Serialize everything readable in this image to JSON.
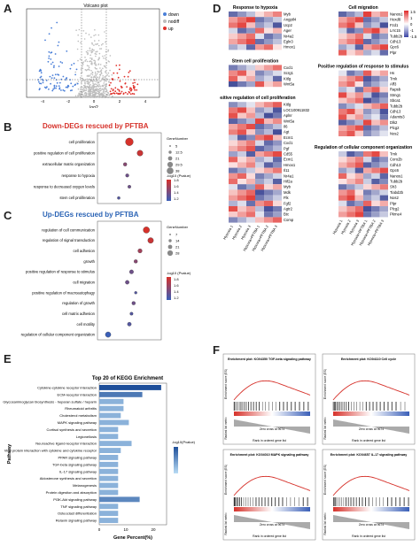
{
  "panels": {
    "a": "A",
    "b": "B",
    "c": "C",
    "d": "D",
    "e": "E",
    "f": "F"
  },
  "volcano": {
    "title": "Volcano plot",
    "xlabel": "log2",
    "xticks": [
      "-4",
      "-2",
      "0",
      "2",
      "4"
    ],
    "legend": [
      "down",
      "nodiff",
      "up"
    ],
    "colors": {
      "down": "#4a7fd8",
      "nodiff": "#bdbdbd",
      "up": "#e0312b"
    }
  },
  "panel_b": {
    "title": "Down-DEGs rescued by PFTBA",
    "terms": [
      "cell proliferation",
      "positive regulation of cell proliferation",
      "extracellular matrix organization",
      "response to hypoxia",
      "response to decreased oxygen levels",
      "stem cell proliferation"
    ],
    "legend_title_size": "GeneNumber",
    "legend_sizes": [
      "5",
      "12.5",
      "21",
      "29.5",
      "38"
    ],
    "legend_title_color": "-log10 (Pvalue)",
    "legend_colors": [
      "1.2",
      "1.4",
      "1.6",
      "1.8"
    ],
    "title_color": "#d6312a"
  },
  "panel_c": {
    "title": "Up-DEGs rescued by PFTBA",
    "terms": [
      "regulation of cell communication",
      "regulation of signal transduction",
      "cell adhesion",
      "growth",
      "positive regulation of response to stimulus",
      "cell migration",
      "positive regulation of macroautophagy",
      "regulation of growth",
      "cell matrix adhesion",
      "cell motility",
      "regulation of cellular component organization"
    ],
    "legend_title_size": "GeneNumber",
    "legend_sizes": [
      "7",
      "14",
      "21",
      "28"
    ],
    "legend_title_color": "-log10 (Pvalue)",
    "legend_colors": [
      "1.2",
      "1.4",
      "1.6",
      "1.8"
    ],
    "title_color": "#2a63b5"
  },
  "panel_d": {
    "sections_left": [
      {
        "title": "Response to hypoxia",
        "genes": [
          "Myb",
          "Angptl4",
          "Ucp2",
          "Ager",
          "Nr4a2",
          "Egln3",
          "Hmox1"
        ]
      },
      {
        "title": "Stem cell proliferation",
        "genes": [
          "Cxcl1",
          "Scrg1",
          "Kitlg",
          "Wnt5a"
        ]
      },
      {
        "title": "Positive regulation of cell proliferation",
        "genes": [
          "Kitlg",
          "LOC100911832",
          "Aplnr",
          "Wnt5a",
          "Il6",
          "Agt",
          "Ecm1",
          "Cxcl1",
          "Pgf",
          "Cd55",
          "Ecm1",
          "Hmox1",
          "Il11",
          "Nr4a1",
          "Hif2a",
          "Myb",
          "Mdk",
          "Flk",
          "Fgf2",
          "Agtr2",
          "Btc",
          "Comp"
        ]
      }
    ],
    "sections_right": [
      {
        "title": "Cell migration",
        "genes": [
          "Nanos1",
          "Hoxd8",
          "Fzd1",
          "Lrrc15",
          "Tubb2b",
          "Cdh13",
          "Gpc6",
          "Plpr"
        ]
      },
      {
        "title": "Positive regulation of response to stimulus",
        "genes": [
          "Hs",
          "Trnk",
          "Aff3",
          "Rapsb",
          "Stmg1",
          "Sbca1",
          "Tubb2b",
          "Cdh13",
          "Adamts3",
          "Dlk2",
          "Plcg2",
          "Nos2"
        ]
      },
      {
        "title": "Regulation of cellular component organization",
        "genes": [
          "Trnk",
          "Coro2b",
          "Cdh13",
          "Gpc6",
          "Nanos1",
          "Tubb2b",
          "Sh3",
          "Tiabd2b",
          "Nos2",
          "Plpr",
          "Plcg2",
          "Pkrne4"
        ]
      }
    ],
    "columns": [
      "Hypoxia 1",
      "Hypoxia 2",
      "Hypoxia 3",
      "Hypoxia+PFTBA 1",
      "Hypoxia+PFTBA 2",
      "Hypoxia+PFTBA 3"
    ],
    "scale": [
      "1.5",
      "1",
      "0",
      "-1",
      "-1.5"
    ]
  },
  "panel_e": {
    "title": "Top 20 of KEGG Enrichment",
    "ylabel": "Pathway",
    "xlabel": "Gene Percent(%)",
    "xticks": [
      "0",
      "10",
      "20"
    ],
    "legend_title": "-log10(Pvalue)",
    "pathways": [
      "Cytokine-cytokine receptor interaction",
      "ECM-receptor interaction",
      "Glycosaminoglycan biosynthesis - heparan sulfate / heparin",
      "Rheumatoid arthritis",
      "Cholesterol metabolism",
      "MAPK signaling pathway",
      "Cortisol synthesis and secretion",
      "Legionellosis",
      "Neuroactive ligand-receptor interaction",
      "Viral protein interaction with cytokine and cytokine receptor",
      "PPAR signaling pathway",
      "TGF-beta signaling pathway",
      "IL-17 signaling pathway",
      "Aldosterone synthesis and secretion",
      "Melanogenesis",
      "Protein digestion and absorption",
      "PI3K-Akt signaling pathway",
      "TNF signaling pathway",
      "Osteoclast differentiation",
      "Relaxin signaling pathway"
    ]
  },
  "panel_f": {
    "plots": [
      {
        "title": "Enrichment plot: KO04350 TGF-beta signaling pathway"
      },
      {
        "title": "Enrichment plot: KO04110 Cell cycle"
      },
      {
        "title": "Enrichment plot: KO04010 MAPK signaling pathway"
      },
      {
        "title": "Enrichment plot: KO04657 IL-17 signaling pathway"
      }
    ],
    "ylabel_es": "Enrichment score (ES)",
    "ylabel_rank": "Ranked list metric",
    "xlabel": "Rank in ordered gene list",
    "zero_cross": "Zero cross at 9674"
  },
  "chart_data": [
    {
      "type": "scatter",
      "title": "Volcano plot",
      "xlabel": "log2",
      "ylabel": "",
      "series": [
        {
          "name": "down"
        },
        {
          "name": "nodiff"
        },
        {
          "name": "up"
        }
      ]
    },
    {
      "type": "scatter",
      "title": "Down-DEGs rescued by PFTBA",
      "categories": [
        "cell proliferation",
        "positive regulation of cell proliferation",
        "extracellular matrix organization",
        "response to hypoxia",
        "response to decreased oxygen levels",
        "stem cell proliferation"
      ],
      "x": [
        0.085,
        0.09,
        0.083,
        0.084,
        0.085,
        0.08
      ],
      "gene_number": [
        38,
        25,
        10,
        8,
        7,
        5
      ],
      "neg_log10_p": [
        1.8,
        1.75,
        1.5,
        1.4,
        1.4,
        1.3
      ]
    },
    {
      "type": "scatter",
      "title": "Up-DEGs rescued by PFTBA",
      "categories": [
        "regulation of cell communication",
        "regulation of signal transduction",
        "cell adhesion",
        "growth",
        "positive regulation of response to stimulus",
        "cell migration",
        "positive regulation of macroautophagy",
        "regulation of growth",
        "cell matrix adhesion",
        "cell motility",
        "regulation of cellular component organization"
      ],
      "x": [
        0.093,
        0.095,
        0.09,
        0.088,
        0.086,
        0.084,
        0.088,
        0.087,
        0.086,
        0.085,
        0.075
      ],
      "gene_number": [
        28,
        24,
        14,
        10,
        13,
        12,
        4,
        10,
        7,
        12,
        22
      ],
      "neg_log10_p": [
        1.8,
        1.75,
        1.6,
        1.5,
        1.4,
        1.4,
        1.3,
        1.4,
        1.3,
        1.3,
        1.2
      ]
    },
    {
      "type": "bar",
      "title": "Top 20 of KEGG Enrichment",
      "xlabel": "Gene Percent(%)",
      "ylabel": "Pathway",
      "categories": [
        "Cytokine-cytokine receptor interaction",
        "ECM-receptor interaction",
        "Glycosaminoglycan biosynthesis - heparan sulfate / heparin",
        "Rheumatoid arthritis",
        "Cholesterol metabolism",
        "MAPK signaling pathway",
        "Cortisol synthesis and secretion",
        "Legionellosis",
        "Neuroactive ligand-receptor interaction",
        "Viral protein interaction with cytokine and cytokine receptor",
        "PPAR signaling pathway",
        "TGF-beta signaling pathway",
        "IL-17 signaling pathway",
        "Aldosterone synthesis and secretion",
        "Melanogenesis",
        "Protein digestion and absorption",
        "PI3K-Akt signaling pathway",
        "TNF signaling pathway",
        "Osteoclast differentiation",
        "Relaxin signaling pathway"
      ],
      "values": [
        23,
        16,
        9,
        9,
        8,
        11,
        7,
        7,
        12,
        8,
        7,
        7,
        7,
        7,
        7,
        7,
        15,
        7,
        7,
        7
      ],
      "xlim": [
        0,
        25
      ]
    }
  ]
}
